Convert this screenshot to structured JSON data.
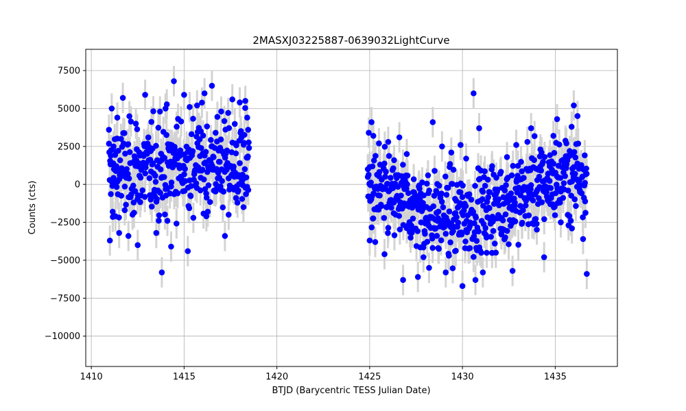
{
  "chart_data": {
    "type": "scatter",
    "title": "2MASXJ03225887-0639032LightCurve",
    "xlabel": "BTJD (Barycentric TESS Julian Date)",
    "ylabel": "Counts (cts)",
    "xlim": [
      1409.7,
      1438.35
    ],
    "ylim": [
      -12000,
      8900
    ],
    "xticks": [
      1410,
      1415,
      1420,
      1425,
      1430,
      1435
    ],
    "yticks": [
      -10000,
      -7500,
      -5000,
      -2500,
      0,
      2500,
      5000,
      7500
    ],
    "xtick_labels": [
      "1410",
      "1415",
      "1420",
      "1425",
      "1430",
      "1435"
    ],
    "ytick_labels": [
      "−10000",
      "−7500",
      "−5000",
      "−2500",
      "0",
      "2500",
      "5000",
      "7500"
    ],
    "grid": true,
    "marker_color": "#0000ff",
    "errorbar_color": "#d3d3d3",
    "error": 1000,
    "series": [
      {
        "segments": [
          [
            1410.9,
            1418.5
          ],
          [
            1424.7,
            1436.8
          ]
        ],
        "points": [
          [
            1410.95,
            3600
          ],
          [
            1411.0,
            -3700
          ],
          [
            1411.05,
            1900
          ],
          [
            1411.1,
            5000
          ],
          [
            1411.15,
            -1800
          ],
          [
            1411.2,
            2500
          ],
          [
            1411.3,
            -2100
          ],
          [
            1411.35,
            1200
          ],
          [
            1411.4,
            4400
          ],
          [
            1411.5,
            -3200
          ],
          [
            1411.6,
            3000
          ],
          [
            1411.7,
            5700
          ],
          [
            1411.8,
            -1700
          ],
          [
            1412.0,
            -3400
          ],
          [
            1412.4,
            4000
          ],
          [
            1412.5,
            -4000
          ],
          [
            1412.9,
            5900
          ],
          [
            1413.2,
            -1000
          ],
          [
            1413.5,
            -3200
          ],
          [
            1413.7,
            4800
          ],
          [
            1413.8,
            -5800
          ],
          [
            1414.0,
            5000
          ],
          [
            1414.1,
            -2400
          ],
          [
            1414.3,
            -4100
          ],
          [
            1414.45,
            6800
          ],
          [
            1414.6,
            3800
          ],
          [
            1415.0,
            5900
          ],
          [
            1415.2,
            -4400
          ],
          [
            1415.3,
            5100
          ],
          [
            1415.5,
            -2200
          ],
          [
            1415.7,
            5200
          ],
          [
            1415.9,
            3500
          ],
          [
            1416.1,
            6000
          ],
          [
            1416.2,
            -2100
          ],
          [
            1416.5,
            6500
          ],
          [
            1416.7,
            3400
          ],
          [
            1417.0,
            4800
          ],
          [
            1417.2,
            -3400
          ],
          [
            1417.4,
            -2000
          ],
          [
            1417.6,
            5600
          ],
          [
            1417.8,
            -900
          ],
          [
            1418.0,
            5400
          ],
          [
            1418.2,
            -1500
          ],
          [
            1418.3,
            5500
          ],
          [
            1418.4,
            4400
          ],
          [
            1418.45,
            3600
          ],
          [
            1418.5,
            2400
          ],
          [
            1424.9,
            1000
          ],
          [
            1424.95,
            3400
          ],
          [
            1425.0,
            -3700
          ],
          [
            1425.1,
            4100
          ],
          [
            1425.2,
            3200
          ],
          [
            1425.3,
            -3800
          ],
          [
            1425.5,
            2700
          ],
          [
            1425.8,
            -4600
          ],
          [
            1426.0,
            2800
          ],
          [
            1426.3,
            -1200
          ],
          [
            1426.6,
            3100
          ],
          [
            1426.8,
            -6300
          ],
          [
            1427.0,
            2000
          ],
          [
            1427.3,
            -3000
          ],
          [
            1427.6,
            -6100
          ],
          [
            1427.9,
            -4800
          ],
          [
            1428.2,
            -5500
          ],
          [
            1428.4,
            4100
          ],
          [
            1428.7,
            -4200
          ],
          [
            1428.9,
            2500
          ],
          [
            1429.1,
            -5800
          ],
          [
            1429.4,
            2100
          ],
          [
            1429.6,
            -4400
          ],
          [
            1429.9,
            2600
          ],
          [
            1430.0,
            -6700
          ],
          [
            1430.2,
            1700
          ],
          [
            1430.4,
            -4200
          ],
          [
            1430.6,
            6000
          ],
          [
            1430.7,
            -6300
          ],
          [
            1430.9,
            3700
          ],
          [
            1431.1,
            -5800
          ],
          [
            1431.3,
            -3500
          ],
          [
            1431.6,
            1200
          ],
          [
            1431.8,
            -4500
          ],
          [
            1432.1,
            -3300
          ],
          [
            1432.4,
            1800
          ],
          [
            1432.7,
            -5700
          ],
          [
            1432.9,
            2600
          ],
          [
            1433.2,
            -2600
          ],
          [
            1433.5,
            2800
          ],
          [
            1433.7,
            3700
          ],
          [
            1434.0,
            -2600
          ],
          [
            1434.2,
            2300
          ],
          [
            1434.4,
            -4800
          ],
          [
            1434.7,
            1200
          ],
          [
            1434.9,
            3200
          ],
          [
            1435.1,
            4300
          ],
          [
            1435.3,
            -2500
          ],
          [
            1435.6,
            2700
          ],
          [
            1435.9,
            -2900
          ],
          [
            1436.0,
            5200
          ],
          [
            1436.2,
            4500
          ],
          [
            1436.5,
            -3600
          ],
          [
            1436.6,
            100
          ],
          [
            1436.7,
            -5900
          ]
        ]
      }
    ]
  }
}
